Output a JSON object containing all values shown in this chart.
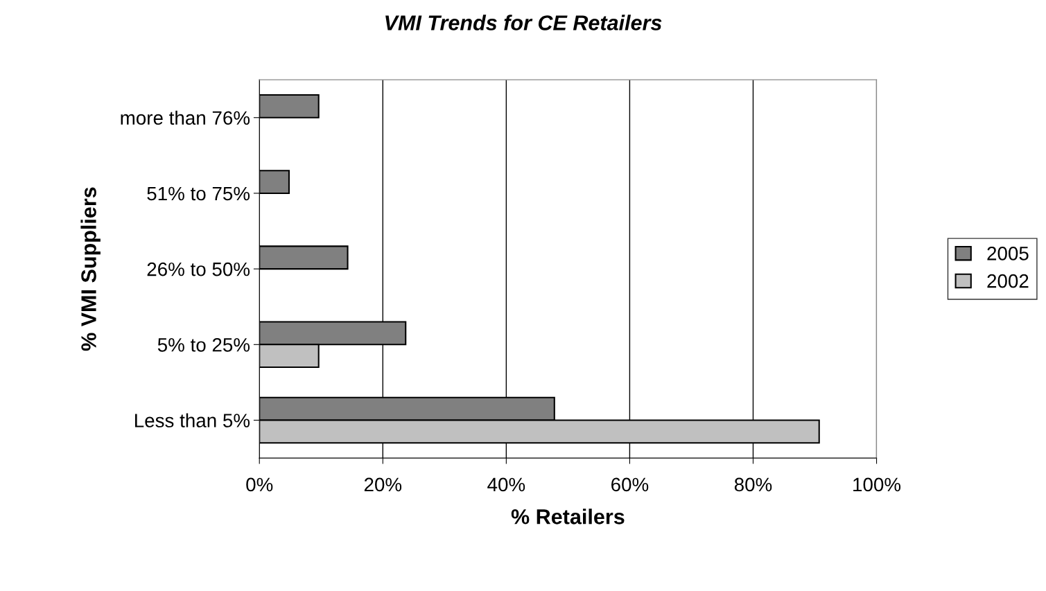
{
  "chart_data": {
    "type": "bar",
    "orientation": "horizontal",
    "title": "VMI Trends for CE Retailers",
    "xlabel": "% Retailers",
    "ylabel": "% VMI Suppliers",
    "categories": [
      "more than 76%",
      "51% to 75%",
      "26% to 50%",
      "5% to 25%",
      "Less than 5%"
    ],
    "series": [
      {
        "name": "2005",
        "color": "#808080",
        "values": [
          9.6,
          4.8,
          14.3,
          23.7,
          47.8
        ]
      },
      {
        "name": "2002",
        "color": "#c0c0c0",
        "values": [
          null,
          null,
          null,
          9.6,
          90.7
        ]
      }
    ],
    "xlim": [
      0,
      100
    ],
    "xticks": [
      {
        "value": 0,
        "label": "0%"
      },
      {
        "value": 20,
        "label": "20%"
      },
      {
        "value": 40,
        "label": "40%"
      },
      {
        "value": 60,
        "label": "60%"
      },
      {
        "value": 80,
        "label": "80%"
      },
      {
        "value": 100,
        "label": "100%"
      }
    ],
    "grid": "x",
    "legend": "right"
  }
}
